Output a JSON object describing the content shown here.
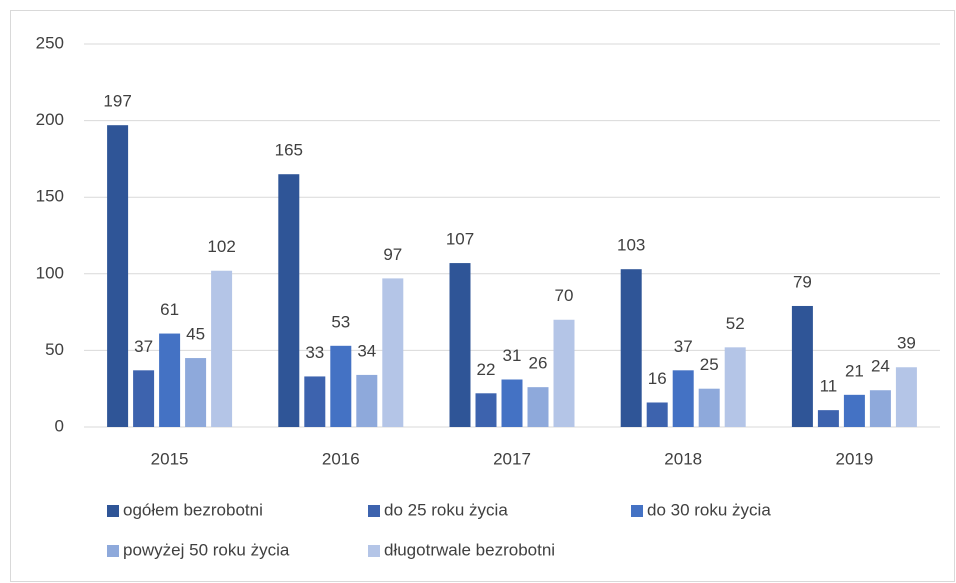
{
  "chart_data": {
    "type": "bar",
    "categories": [
      "2015",
      "2016",
      "2017",
      "2018",
      "2019"
    ],
    "series": [
      {
        "name": "ogółem bezrobotni",
        "color": "#2f5597",
        "values": [
          197,
          165,
          107,
          103,
          79
        ]
      },
      {
        "name": "do 25 roku życia",
        "color": "#3d63ae",
        "values": [
          37,
          33,
          22,
          16,
          11
        ]
      },
      {
        "name": "do 30 roku życia",
        "color": "#4472c4",
        "values": [
          61,
          53,
          31,
          37,
          21
        ]
      },
      {
        "name": "powyżej 50 roku życia",
        "color": "#8ea9db",
        "values": [
          45,
          34,
          26,
          25,
          24
        ]
      },
      {
        "name": "długotrwale bezrobotni",
        "color": "#b4c5e7",
        "values": [
          102,
          97,
          70,
          52,
          39
        ]
      }
    ],
    "ylim": [
      0,
      250
    ],
    "yticks": [
      0,
      50,
      100,
      150,
      200,
      250
    ],
    "grid": true,
    "legend": "bottom"
  }
}
